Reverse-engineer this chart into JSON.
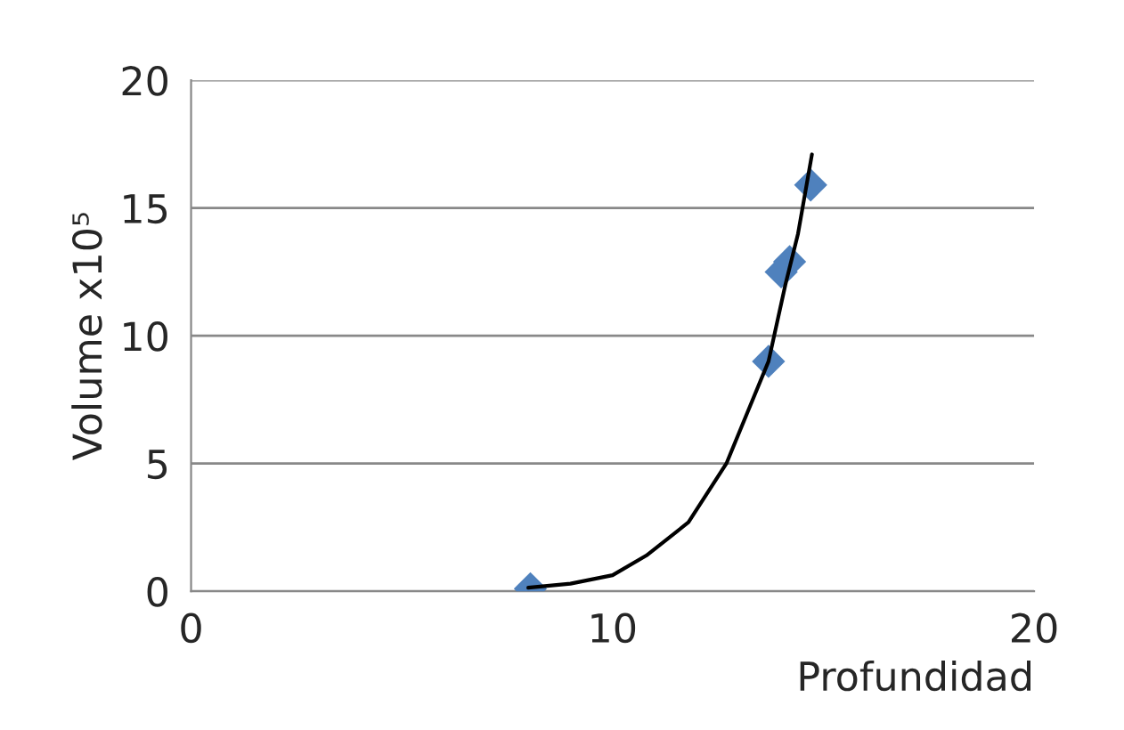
{
  "chart_data": {
    "type": "scatter",
    "xlabel": "Profundidad",
    "ylabel": "Volume x10⁵",
    "xlim": [
      0,
      20
    ],
    "ylim": [
      0,
      20
    ],
    "xticks": [
      0,
      10,
      20
    ],
    "yticks": [
      0,
      5,
      10,
      15,
      20
    ],
    "grid": "y",
    "marker": "diamond",
    "series": [
      {
        "color": "#4f81bd",
        "x": [
          8.05,
          13.7,
          14.0,
          14.2,
          14.7
        ],
        "values": [
          0.1,
          9.0,
          12.5,
          12.9,
          15.9
        ]
      },
      {
        "type": "line",
        "color": "#000000",
        "marker": "none",
        "x": [
          8.0,
          9.0,
          10.0,
          10.8,
          11.8,
          12.7,
          13.2,
          13.7,
          14.1,
          14.4,
          14.73
        ],
        "values": [
          0.14,
          0.3,
          0.63,
          1.4,
          2.7,
          5.0,
          7.0,
          9.0,
          12.0,
          14.0,
          17.1
        ]
      }
    ]
  }
}
